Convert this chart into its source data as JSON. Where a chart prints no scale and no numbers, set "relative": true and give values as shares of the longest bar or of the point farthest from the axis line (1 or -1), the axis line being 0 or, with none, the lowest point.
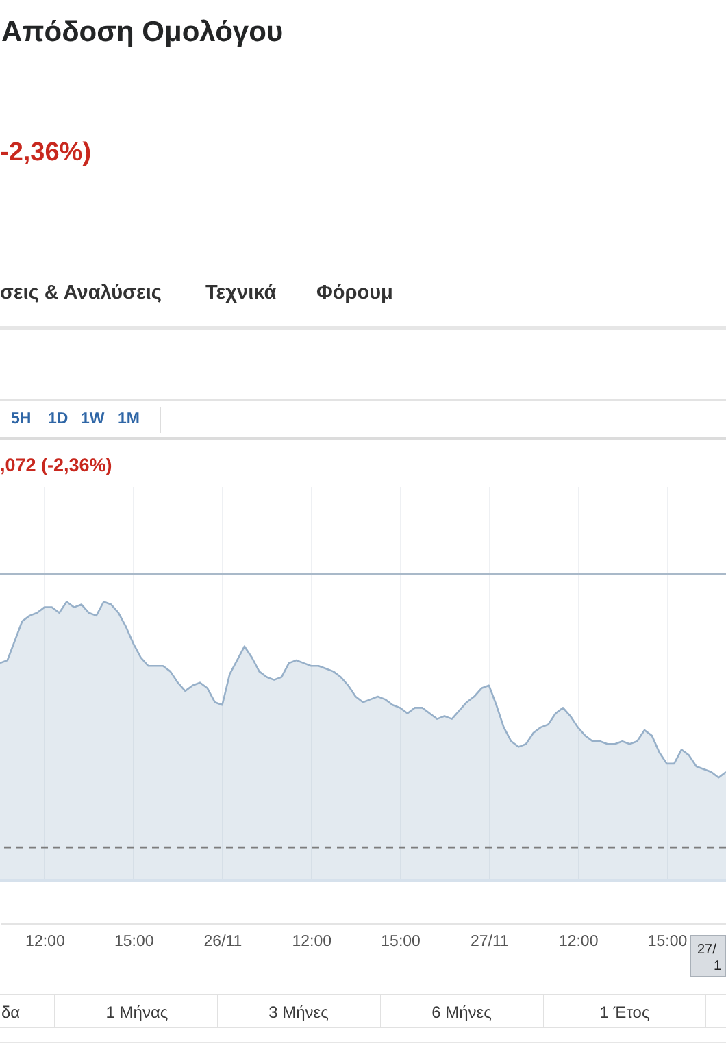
{
  "chart_data": {
    "type": "area",
    "title": "Απόδοση Ομολόγου",
    "subtitle": "-2,36%)",
    "annotations": [
      "σεις & Αναλύσεις",
      "Τεχνικά",
      "Φόρουμ",
      "5H",
      "1D",
      "1W",
      "1M",
      ",072 (-2,36%)",
      "δα",
      "1 Μήνας",
      "3 Μήνες",
      "6 Μήνες",
      "1 Έτος",
      "27/",
      "1"
    ],
    "relative": true,
    "categories": [
      null,
      null,
      null,
      null,
      null,
      null,
      "12:00",
      null,
      null,
      null,
      null,
      null,
      null,
      null,
      null,
      null,
      null,
      null,
      "15:00",
      null,
      null,
      null,
      null,
      null,
      null,
      null,
      null,
      null,
      null,
      null,
      "26/11",
      null,
      null,
      null,
      null,
      null,
      null,
      null,
      null,
      null,
      null,
      null,
      "12:00",
      null,
      null,
      null,
      null,
      null,
      null,
      null,
      null,
      null,
      null,
      null,
      "15:00",
      null,
      null,
      null,
      null,
      null,
      null,
      null,
      null,
      null,
      null,
      null,
      "27/11",
      null,
      null,
      null,
      null,
      null,
      null,
      null,
      null,
      null,
      null,
      null,
      "12:00",
      null,
      null,
      null,
      null,
      null,
      null,
      null,
      null,
      null,
      null,
      null,
      "15:00",
      null,
      null,
      null,
      null,
      null,
      null,
      null,
      null
    ],
    "series": [
      {
        "color": "#97b0c9",
        "values": [
          0.78,
          0.79,
          0.86,
          0.93,
          0.95,
          0.96,
          0.98,
          0.98,
          0.96,
          1.0,
          0.98,
          0.99,
          0.96,
          0.95,
          1.0,
          0.99,
          0.96,
          0.91,
          0.85,
          0.8,
          0.77,
          0.77,
          0.77,
          0.75,
          0.71,
          0.68,
          0.7,
          0.71,
          0.69,
          0.64,
          0.63,
          0.74,
          0.79,
          0.84,
          0.8,
          0.75,
          0.73,
          0.72,
          0.73,
          0.78,
          0.79,
          0.78,
          0.77,
          0.77,
          0.76,
          0.75,
          0.73,
          0.7,
          0.66,
          0.64,
          0.65,
          0.66,
          0.65,
          0.63,
          0.62,
          0.6,
          0.62,
          0.62,
          0.6,
          0.58,
          0.59,
          0.58,
          0.61,
          0.64,
          0.66,
          0.69,
          0.7,
          0.63,
          0.55,
          0.5,
          0.48,
          0.49,
          0.53,
          0.55,
          0.56,
          0.6,
          0.62,
          0.59,
          0.55,
          0.52,
          0.5,
          0.5,
          0.49,
          0.49,
          0.5,
          0.49,
          0.5,
          0.54,
          0.52,
          0.46,
          0.42,
          0.42,
          0.47,
          0.45,
          0.41,
          0.4,
          0.39,
          0.37,
          0.39
        ]
      }
    ],
    "ref_lines": [
      {
        "axis": "y",
        "value": 1.1,
        "color": "#a9b9c9",
        "line_style": "solid"
      },
      {
        "axis": "y",
        "value": 0.12,
        "color": "#7d7d7d",
        "line_style": "dashed"
      }
    ],
    "grid": "x"
  }
}
